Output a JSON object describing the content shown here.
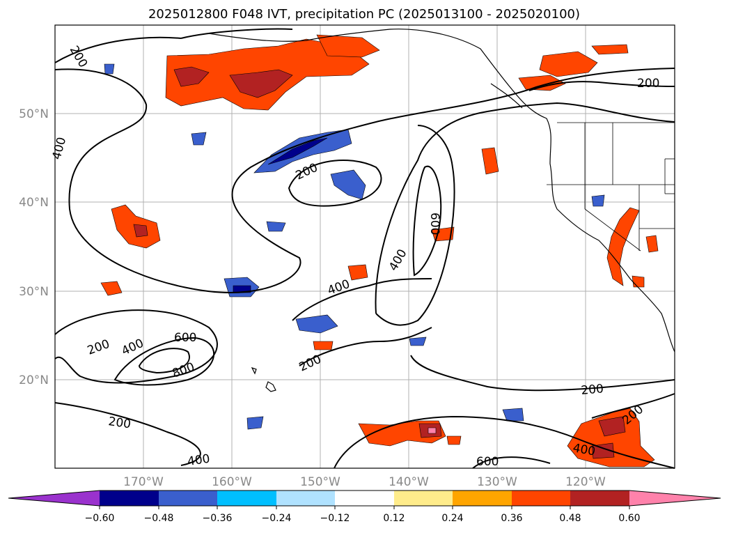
{
  "title": "2025012800 F048 IVT, precipitation PC (2025013100 - 2025020100)",
  "map": {
    "lat_labels": [
      "50°N",
      "40°N",
      "30°N",
      "20°N"
    ],
    "lon_labels": [
      "170°W",
      "160°W",
      "150°W",
      "140°W",
      "130°W",
      "120°W"
    ],
    "ivt_contour_levels": [
      200,
      400,
      600,
      800
    ],
    "contour_labels": [
      "200",
      "400",
      "200",
      "600",
      "400",
      "400",
      "200",
      "400",
      "600",
      "800",
      "200",
      "200",
      "400",
      "600",
      "200",
      "400",
      "200",
      "200"
    ]
  },
  "colorbar": {
    "colors": [
      "#9a32cd",
      "#00008b",
      "#3a5fcd",
      "#00bfff",
      "#b0e2ff",
      "#ffffff",
      "#ffec8b",
      "#ffa500",
      "#ff4500",
      "#b22222",
      "#ff82ab"
    ],
    "tick_labels": [
      "−0.60",
      "−0.48",
      "−0.36",
      "−0.24",
      "−0.12",
      "0.12",
      "0.24",
      "0.36",
      "0.48",
      "0.60"
    ]
  }
}
